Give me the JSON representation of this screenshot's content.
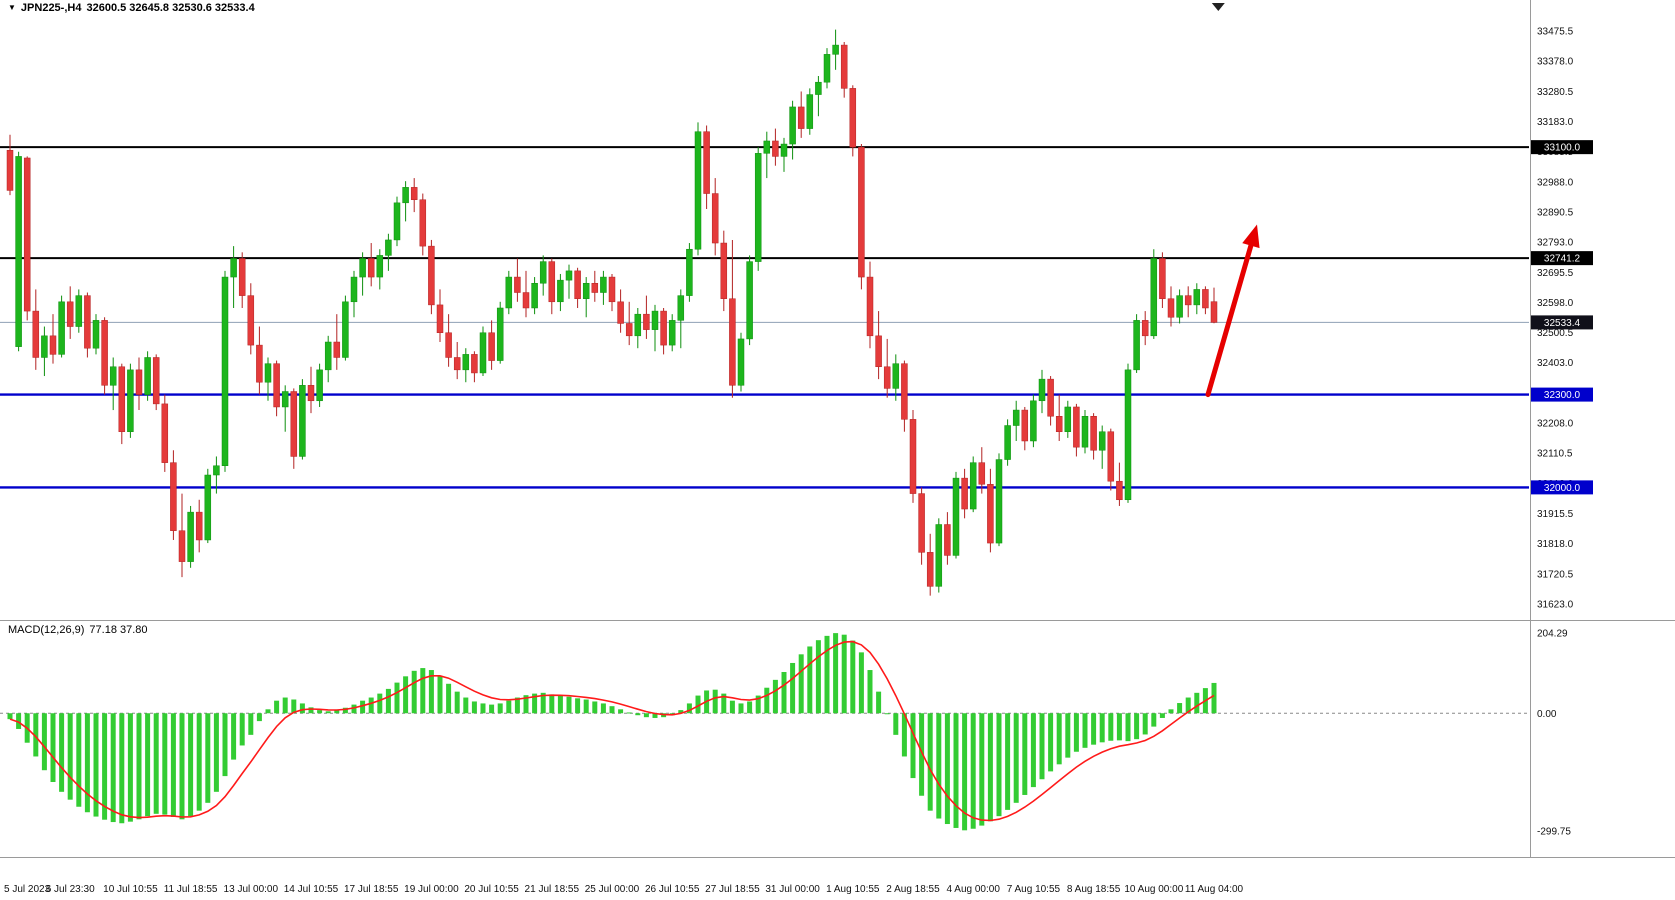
{
  "header": {
    "symbol_label": "JPN225-,H4",
    "ohlc_label": "32600.5 32645.8 32530.6 32533.4"
  },
  "macd_panel": {
    "label": "MACD(12,26,9)",
    "values_label": "77.18 37.80"
  },
  "chart_data": {
    "type": "candlestick",
    "symbol": "JPN225-",
    "timeframe": "H4",
    "last_ohlc": {
      "open": 32600.5,
      "high": 32645.8,
      "low": 32530.6,
      "close": 32533.4
    },
    "colors": {
      "up": "#1db51d",
      "up_border": "#0d8f0d",
      "down": "#e43b3b",
      "down_border": "#b22222",
      "macd_hist": "#33cc33",
      "macd_signal": "#ff1a1a",
      "hline_black": "#000000",
      "hline_blue": "#0000cc",
      "bid_line": "#8fa0b5",
      "bid_badge": "#10101a",
      "arrow": "#e60000",
      "axis_text": "#111111",
      "separator": "#9a9a9a",
      "zero_line": "#888888",
      "shift_marker": "#222222"
    },
    "y_axis": {
      "ticks": [
        33475.5,
        33378.0,
        33280.5,
        33183.0,
        33085.5,
        32988.0,
        32890.5,
        32793.0,
        32695.5,
        32598.0,
        32500.5,
        32403.0,
        32305.5,
        32208.0,
        32110.5,
        32013.0,
        31915.5,
        31818.0,
        31720.5,
        31623.0
      ]
    },
    "x_axis": {
      "bars_per_label": 7,
      "labels": [
        "5 Jul 2023",
        "6 Jul 23:30",
        "10 Jul 10:55",
        "11 Jul 18:55",
        "13 Jul 00:00",
        "14 Jul 10:55",
        "17 Jul 18:55",
        "19 Jul 00:00",
        "20 Jul 10:55",
        "21 Jul 18:55",
        "25 Jul 00:00",
        "26 Jul 10:55",
        "27 Jul 18:55",
        "31 Jul 00:00",
        "1 Aug 10:55",
        "2 Aug 18:55",
        "4 Aug 00:00",
        "7 Aug 10:55",
        "8 Aug 18:55",
        "10 Aug 00:00",
        "11 Aug 04:00"
      ]
    },
    "horizontal_lines": [
      {
        "price": 33100.0,
        "label": "33100.0",
        "color": "black"
      },
      {
        "price": 32741.2,
        "label": "32741.2",
        "color": "black"
      },
      {
        "price": 32300.0,
        "label": "32300.0",
        "color": "blue"
      },
      {
        "price": 32000.0,
        "label": "32000.0",
        "color": "blue"
      }
    ],
    "current_price": {
      "value": 32533.4,
      "label": "32533.4"
    },
    "candles": [
      [
        33090,
        33140,
        32945,
        32960
      ],
      [
        32455,
        33085,
        32440,
        33070
      ],
      [
        33065,
        33070,
        32540,
        32570
      ],
      [
        32570,
        32640,
        32380,
        32420
      ],
      [
        32420,
        32520,
        32360,
        32490
      ],
      [
        32490,
        32560,
        32400,
        32430
      ],
      [
        32430,
        32620,
        32420,
        32600
      ],
      [
        32600,
        32650,
        32480,
        32520
      ],
      [
        32520,
        32640,
        32500,
        32620
      ],
      [
        32620,
        32630,
        32420,
        32450
      ],
      [
        32450,
        32560,
        32430,
        32540
      ],
      [
        32540,
        32550,
        32300,
        32330
      ],
      [
        32330,
        32420,
        32250,
        32390
      ],
      [
        32390,
        32400,
        32140,
        32180
      ],
      [
        32180,
        32400,
        32160,
        32380
      ],
      [
        32380,
        32420,
        32250,
        32300
      ],
      [
        32300,
        32440,
        32280,
        32420
      ],
      [
        32420,
        32430,
        32250,
        32270
      ],
      [
        32270,
        32300,
        32050,
        32080
      ],
      [
        32080,
        32120,
        31830,
        31860
      ],
      [
        31860,
        31980,
        31710,
        31760
      ],
      [
        31760,
        31940,
        31740,
        31920
      ],
      [
        31920,
        31960,
        31790,
        31830
      ],
      [
        31830,
        32060,
        31820,
        32040
      ],
      [
        32040,
        32100,
        31980,
        32070
      ],
      [
        32070,
        32700,
        32050,
        32680
      ],
      [
        32680,
        32780,
        32580,
        32740
      ],
      [
        32740,
        32760,
        32580,
        32620
      ],
      [
        32620,
        32660,
        32430,
        32460
      ],
      [
        32460,
        32520,
        32300,
        32340
      ],
      [
        32340,
        32420,
        32280,
        32400
      ],
      [
        32400,
        32410,
        32230,
        32260
      ],
      [
        32260,
        32330,
        32180,
        32310
      ],
      [
        32310,
        32320,
        32060,
        32100
      ],
      [
        32100,
        32350,
        32090,
        32330
      ],
      [
        32330,
        32390,
        32240,
        32280
      ],
      [
        32280,
        32400,
        32260,
        32380
      ],
      [
        32380,
        32490,
        32340,
        32470
      ],
      [
        32470,
        32560,
        32380,
        32420
      ],
      [
        32420,
        32620,
        32410,
        32600
      ],
      [
        32600,
        32700,
        32550,
        32680
      ],
      [
        32680,
        32760,
        32620,
        32740
      ],
      [
        32740,
        32790,
        32650,
        32680
      ],
      [
        32680,
        32770,
        32640,
        32750
      ],
      [
        32750,
        32820,
        32700,
        32800
      ],
      [
        32800,
        32940,
        32780,
        32920
      ],
      [
        32920,
        32990,
        32860,
        32970
      ],
      [
        32970,
        33000,
        32890,
        32930
      ],
      [
        32930,
        32950,
        32750,
        32780
      ],
      [
        32780,
        32800,
        32560,
        32590
      ],
      [
        32590,
        32640,
        32470,
        32500
      ],
      [
        32500,
        32560,
        32390,
        32420
      ],
      [
        32420,
        32470,
        32350,
        32380
      ],
      [
        32380,
        32450,
        32340,
        32430
      ],
      [
        32430,
        32440,
        32340,
        32370
      ],
      [
        32370,
        32520,
        32360,
        32500
      ],
      [
        32500,
        32540,
        32380,
        32410
      ],
      [
        32410,
        32600,
        32400,
        32580
      ],
      [
        32580,
        32700,
        32560,
        32680
      ],
      [
        32680,
        32740,
        32600,
        32630
      ],
      [
        32630,
        32700,
        32550,
        32580
      ],
      [
        32580,
        32680,
        32560,
        32660
      ],
      [
        32660,
        32750,
        32620,
        32730
      ],
      [
        32730,
        32740,
        32560,
        32600
      ],
      [
        32600,
        32690,
        32570,
        32670
      ],
      [
        32670,
        32720,
        32610,
        32700
      ],
      [
        32700,
        32710,
        32580,
        32610
      ],
      [
        32610,
        32680,
        32550,
        32660
      ],
      [
        32660,
        32700,
        32600,
        32630
      ],
      [
        32630,
        32700,
        32590,
        32680
      ],
      [
        32680,
        32690,
        32570,
        32600
      ],
      [
        32600,
        32640,
        32500,
        32530
      ],
      [
        32530,
        32600,
        32460,
        32490
      ],
      [
        32490,
        32580,
        32450,
        32560
      ],
      [
        32560,
        32620,
        32480,
        32510
      ],
      [
        32510,
        32590,
        32440,
        32570
      ],
      [
        32570,
        32580,
        32430,
        32460
      ],
      [
        32460,
        32560,
        32440,
        32540
      ],
      [
        32540,
        32640,
        32450,
        32620
      ],
      [
        32620,
        32790,
        32600,
        32770
      ],
      [
        32770,
        33180,
        32750,
        33150
      ],
      [
        33150,
        33170,
        32900,
        32950
      ],
      [
        32950,
        33000,
        32750,
        32790
      ],
      [
        32790,
        32830,
        32570,
        32610
      ],
      [
        32610,
        32800,
        32290,
        32330
      ],
      [
        32330,
        32500,
        32310,
        32480
      ],
      [
        32480,
        32750,
        32460,
        32730
      ],
      [
        32730,
        33100,
        32700,
        33080
      ],
      [
        33080,
        33150,
        33000,
        33120
      ],
      [
        33120,
        33160,
        33040,
        33070
      ],
      [
        33070,
        33130,
        33020,
        33110
      ],
      [
        33110,
        33250,
        33060,
        33230
      ],
      [
        33230,
        33280,
        33130,
        33160
      ],
      [
        33160,
        33290,
        33140,
        33270
      ],
      [
        33270,
        33330,
        33200,
        33310
      ],
      [
        33310,
        33420,
        33290,
        33400
      ],
      [
        33400,
        33480,
        33350,
        33430
      ],
      [
        33430,
        33440,
        33260,
        33290
      ],
      [
        33290,
        33300,
        33070,
        33100
      ],
      [
        33100,
        33110,
        32640,
        32680
      ],
      [
        32680,
        32730,
        32450,
        32490
      ],
      [
        32490,
        32570,
        32350,
        32390
      ],
      [
        32390,
        32480,
        32290,
        32320
      ],
      [
        32320,
        32430,
        32280,
        32400
      ],
      [
        32400,
        32410,
        32180,
        32220
      ],
      [
        32220,
        32250,
        31950,
        31980
      ],
      [
        31980,
        32000,
        31750,
        31790
      ],
      [
        31790,
        31850,
        31650,
        31680
      ],
      [
        31680,
        31900,
        31660,
        31880
      ],
      [
        31880,
        31920,
        31750,
        31780
      ],
      [
        31780,
        32050,
        31770,
        32030
      ],
      [
        32030,
        32060,
        31900,
        31930
      ],
      [
        31930,
        32100,
        31920,
        32080
      ],
      [
        32080,
        32130,
        31980,
        32010
      ],
      [
        32010,
        32060,
        31790,
        31820
      ],
      [
        31820,
        32110,
        31810,
        32090
      ],
      [
        32090,
        32220,
        32070,
        32200
      ],
      [
        32200,
        32280,
        32150,
        32250
      ],
      [
        32250,
        32260,
        32120,
        32150
      ],
      [
        32150,
        32300,
        32130,
        32280
      ],
      [
        32280,
        32380,
        32240,
        32350
      ],
      [
        32350,
        32360,
        32200,
        32230
      ],
      [
        32230,
        32300,
        32150,
        32180
      ],
      [
        32180,
        32280,
        32160,
        32260
      ],
      [
        32260,
        32270,
        32100,
        32130
      ],
      [
        32130,
        32250,
        32110,
        32230
      ],
      [
        32230,
        32240,
        32090,
        32120
      ],
      [
        32120,
        32200,
        32060,
        32180
      ],
      [
        32180,
        32190,
        31990,
        32020
      ],
      [
        32020,
        32080,
        31940,
        31960
      ],
      [
        31960,
        32400,
        31950,
        32380
      ],
      [
        32380,
        32560,
        32370,
        32540
      ],
      [
        32540,
        32570,
        32460,
        32490
      ],
      [
        32490,
        32770,
        32480,
        32740
      ],
      [
        32740,
        32760,
        32580,
        32610
      ],
      [
        32610,
        32650,
        32520,
        32550
      ],
      [
        32550,
        32640,
        32530,
        32620
      ],
      [
        32620,
        32650,
        32550,
        32590
      ],
      [
        32590,
        32660,
        32560,
        32640
      ],
      [
        32640,
        32650,
        32560,
        32580
      ],
      [
        32600.5,
        32645.8,
        32530.6,
        32533.4
      ]
    ],
    "macd": {
      "macd_value": 77.18,
      "signal_value": 37.8,
      "axis_ticks": [
        {
          "value": 204.29,
          "label": "204.29"
        },
        {
          "value": 0,
          "label": "0.00"
        },
        {
          "value": -299.75,
          "label": "-299.75"
        }
      ],
      "histogram": [
        -15,
        -40,
        -75,
        -110,
        -145,
        -175,
        -200,
        -220,
        -238,
        -252,
        -263,
        -271,
        -277,
        -280,
        -276,
        -270,
        -262,
        -256,
        -258,
        -264,
        -270,
        -262,
        -248,
        -228,
        -200,
        -160,
        -118,
        -82,
        -55,
        -20,
        10,
        32,
        40,
        35,
        25,
        15,
        8,
        5,
        8,
        14,
        22,
        32,
        40,
        50,
        62,
        78,
        94,
        108,
        115,
        110,
        95,
        75,
        55,
        40,
        30,
        25,
        22,
        25,
        32,
        40,
        46,
        50,
        52,
        48,
        45,
        42,
        38,
        35,
        30,
        25,
        18,
        10,
        2,
        -5,
        -10,
        -12,
        -10,
        -5,
        8,
        25,
        45,
        58,
        60,
        50,
        32,
        25,
        30,
        45,
        65,
        85,
        105,
        128,
        150,
        170,
        186,
        197,
        204,
        200,
        185,
        155,
        110,
        55,
        0,
        -55,
        -110,
        -165,
        -210,
        -248,
        -268,
        -282,
        -292,
        -298,
        -294,
        -286,
        -275,
        -262,
        -246,
        -228,
        -208,
        -188,
        -168,
        -148,
        -130,
        -113,
        -98,
        -88,
        -80,
        -74,
        -70,
        -69,
        -71,
        -66,
        -54,
        -34,
        -12,
        10,
        26,
        40,
        52,
        64,
        77.18
      ]
    },
    "annotations": [
      {
        "type": "arrow",
        "from": {
          "bar": 139.3,
          "price": 32300
        },
        "to": {
          "bar": 145,
          "price": 32850
        }
      }
    ]
  }
}
